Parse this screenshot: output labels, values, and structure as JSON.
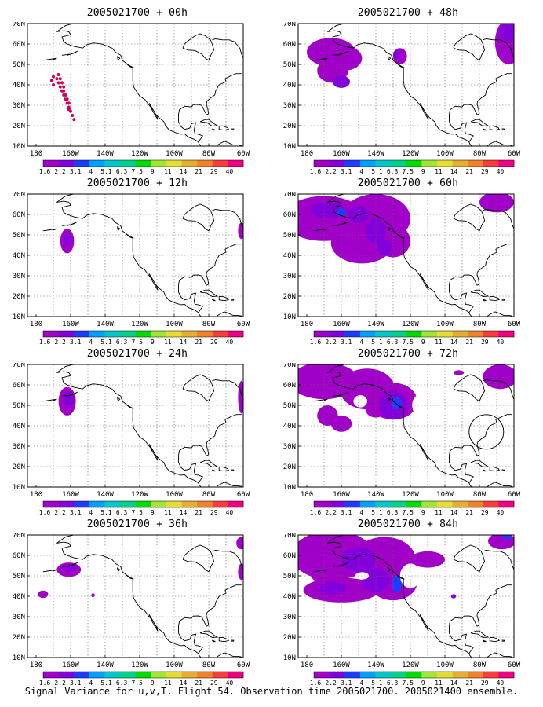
{
  "caption": "Signal Variance for u,v,T. Flight 54. Observation time 2005021700. 2005021400 ensemble.",
  "panels": [
    {
      "title": "2005021700 + 00h"
    },
    {
      "title": "2005021700 + 48h"
    },
    {
      "title": "2005021700 + 12h"
    },
    {
      "title": "2005021700 + 60h"
    },
    {
      "title": "2005021700 + 24h"
    },
    {
      "title": "2005021700 + 72h"
    },
    {
      "title": "2005021700 + 36h"
    },
    {
      "title": "2005021700 + 84h"
    }
  ],
  "map": {
    "lat_labels": [
      "70N",
      "60N",
      "50N",
      "40N",
      "30N",
      "20N",
      "10N"
    ],
    "lon_labels": [
      "180",
      "160W",
      "140W",
      "120W",
      "100W",
      "80W",
      "60W"
    ]
  },
  "colorbar": {
    "labels": [
      "1.6",
      "2.2",
      "3.1",
      "4",
      "5.1",
      "6.3",
      "7.5",
      "9",
      "11",
      "14",
      "21",
      "29",
      "40"
    ],
    "colors": [
      "#a000c8",
      "#8200dc",
      "#1e3cff",
      "#00a0ff",
      "#00c8c8",
      "#00d28c",
      "#00dc00",
      "#a0e632",
      "#e6dc32",
      "#e6af2d",
      "#f08228",
      "#fa3c3c",
      "#f00082"
    ]
  },
  "colors": {
    "fill_light": "#a000c8",
    "fill_mid": "#8200dc",
    "fill_blue": "#1e3cff",
    "track": "#d2005a"
  }
}
